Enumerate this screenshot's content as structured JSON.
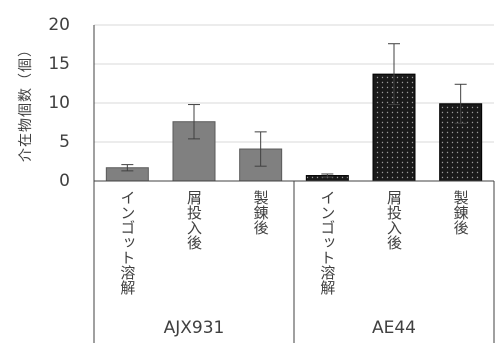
{
  "chart_data": {
    "type": "bar",
    "ylabel": "介在物個数（個）",
    "ylim": [
      0,
      20
    ],
    "yticks": [
      0,
      5,
      10,
      15,
      20
    ],
    "grid": true,
    "categories": [
      "インゴット溶解",
      "屑投入後",
      "製錬後",
      "インゴット溶解",
      "屑投入後",
      "製錬後"
    ],
    "groups": [
      {
        "label": "AJX931",
        "categories": [
          "インゴット溶解",
          "屑投入後",
          "製錬後"
        ]
      },
      {
        "label": "AE44",
        "categories": [
          "インゴット溶解",
          "屑投入後",
          "製錬後"
        ]
      }
    ],
    "values": [
      1.7,
      7.6,
      4.1,
      0.7,
      13.7,
      9.9
    ],
    "errors": [
      0.4,
      2.2,
      2.2,
      0.2,
      3.9,
      2.5
    ],
    "bar_styles": [
      "gray",
      "gray",
      "gray",
      "dotted",
      "dotted",
      "dotted"
    ],
    "colors": {
      "gray": "#808080",
      "dotted": "#1a1a1a",
      "axis": "#404040",
      "grid": "#d9d9d9",
      "error": "#404040"
    }
  }
}
